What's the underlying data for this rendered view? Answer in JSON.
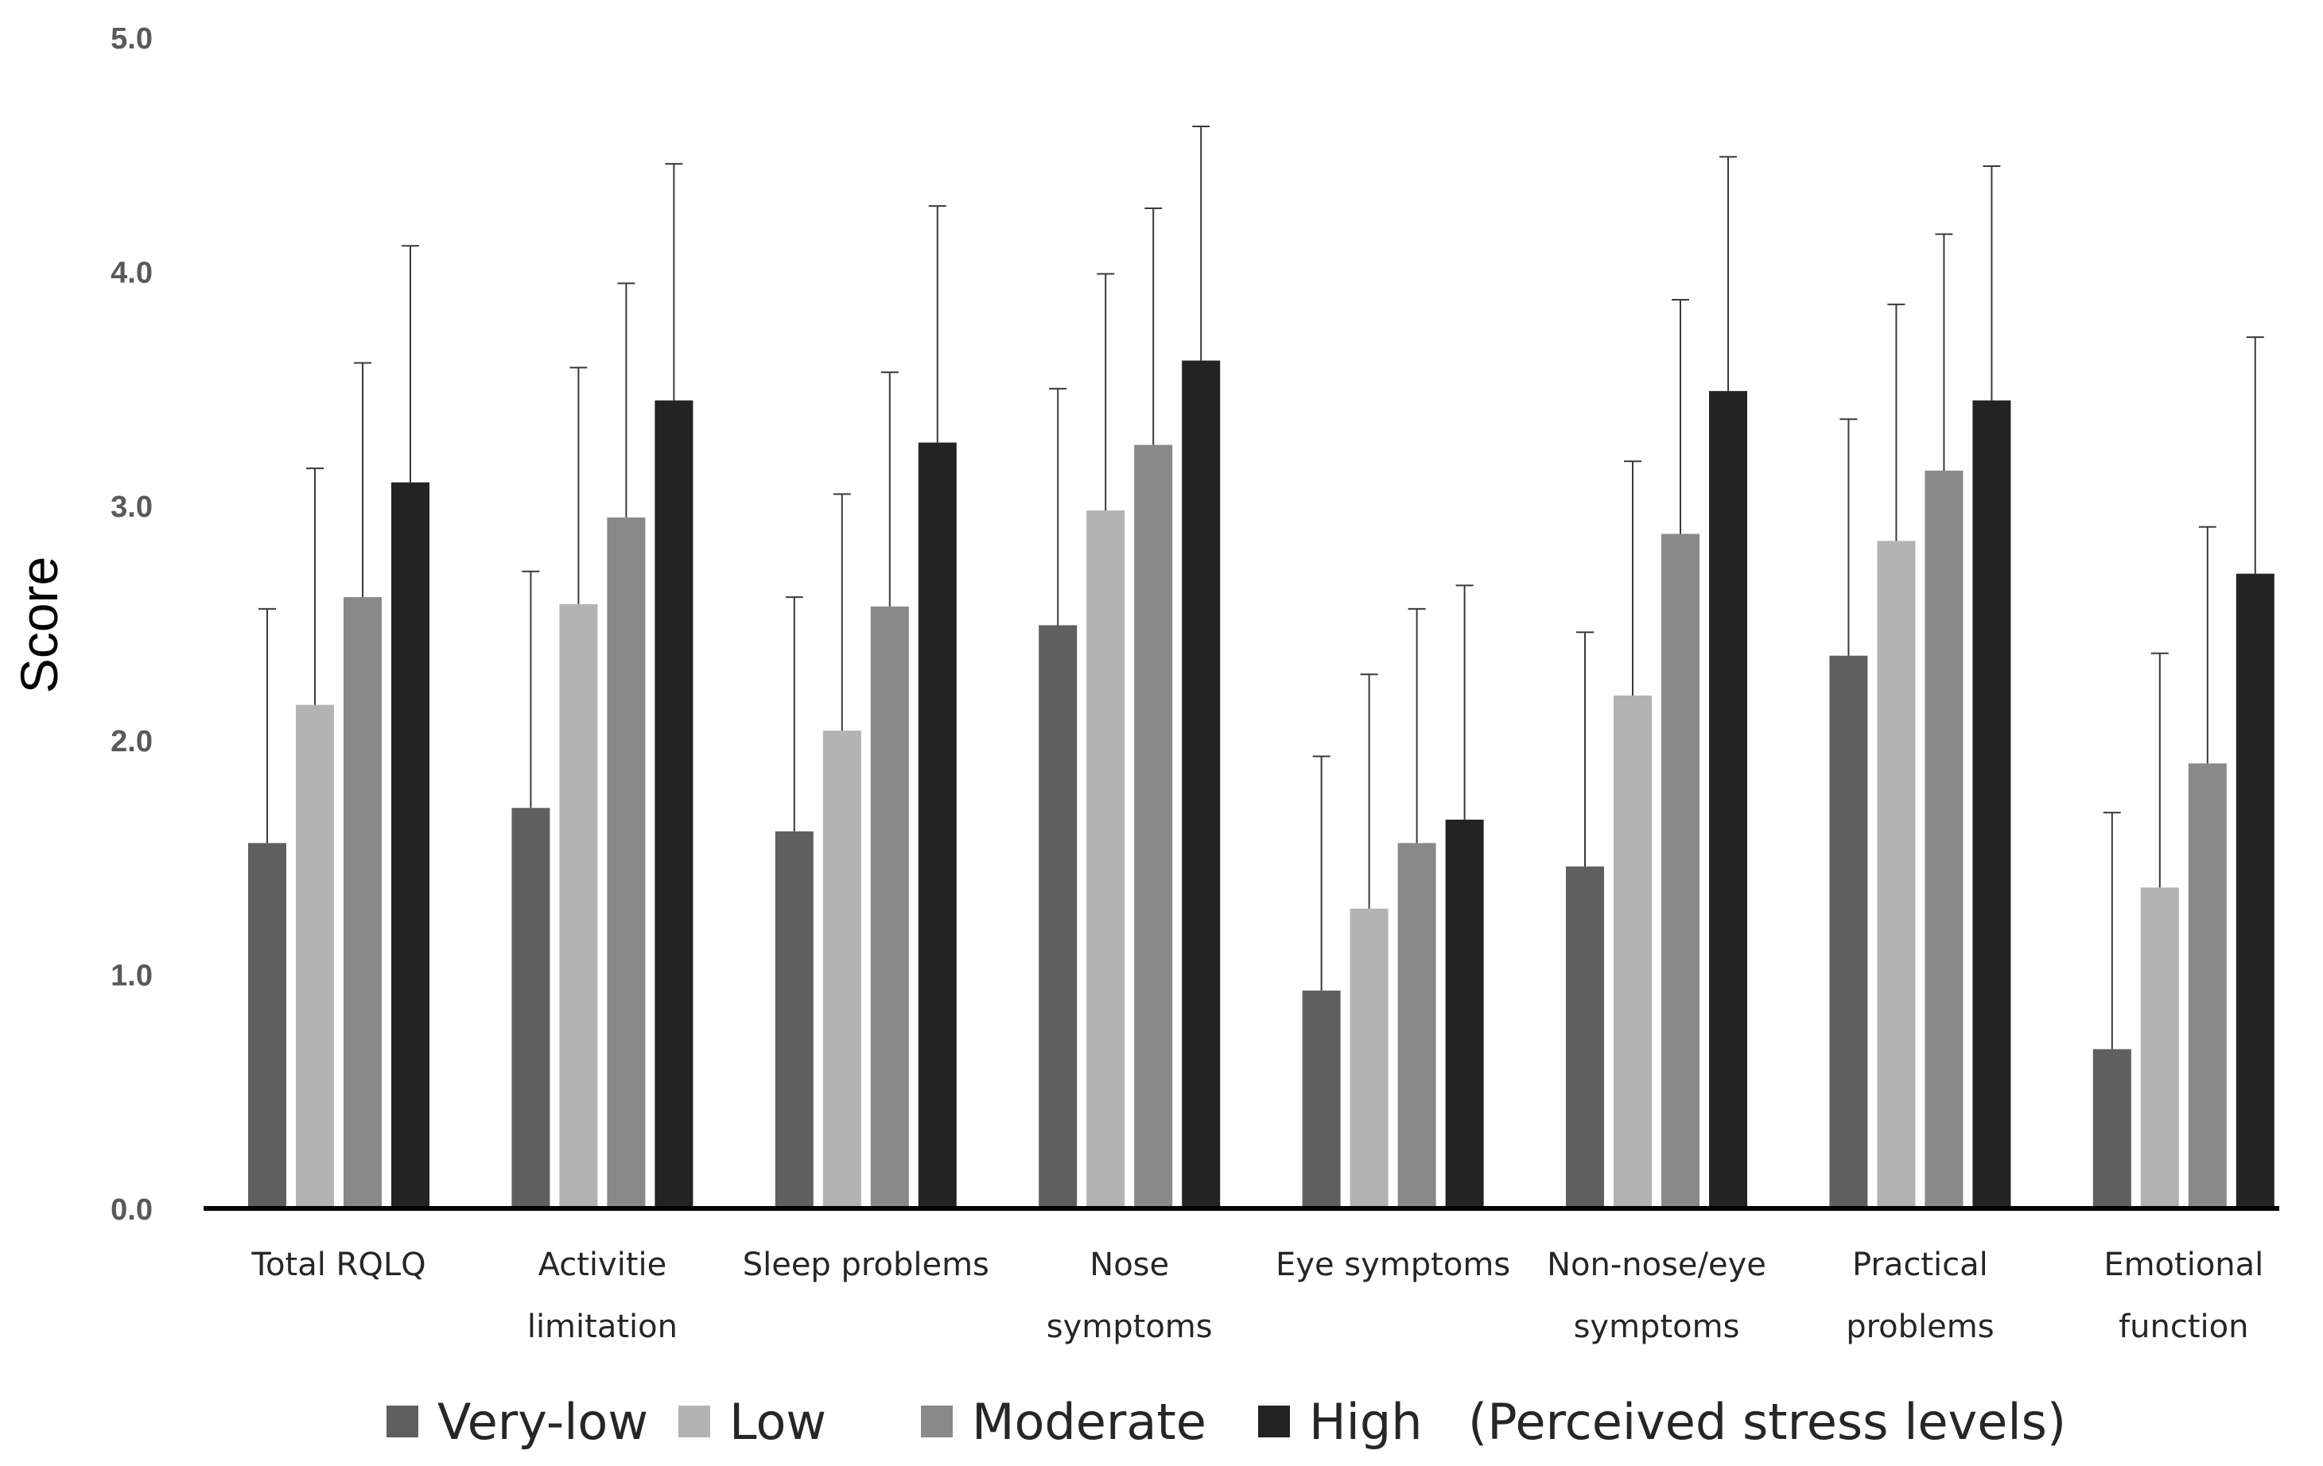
{
  "chart_data": {
    "type": "bar",
    "title": "",
    "xlabel": "",
    "ylabel": "Score",
    "ylim": [
      0,
      5
    ],
    "yticks": [
      "0.0",
      "1.0",
      "2.0",
      "3.0",
      "4.0",
      "5.0"
    ],
    "grid": false,
    "legend_position": "bottom",
    "legend_note": "(Perceived stress levels)",
    "categories": [
      [
        "Total RQLQ"
      ],
      [
        "Activitie",
        "limitation"
      ],
      [
        "Sleep problems"
      ],
      [
        "Nose",
        "symptoms"
      ],
      [
        "Eye symptoms"
      ],
      [
        "Non-nose/eye",
        "symptoms"
      ],
      [
        "Practical",
        "problems"
      ],
      [
        "Emotional",
        "function"
      ]
    ],
    "series": [
      {
        "name": "Very-low",
        "color": "#5f5f5f",
        "values": [
          1.56,
          1.71,
          1.61,
          2.49,
          0.93,
          1.46,
          2.36,
          0.68
        ],
        "error_upper": [
          2.56,
          2.72,
          2.61,
          3.5,
          1.93,
          2.46,
          3.37,
          1.69
        ]
      },
      {
        "name": "Low",
        "color": "#b3b3b3",
        "values": [
          2.15,
          2.58,
          2.04,
          2.98,
          1.28,
          2.19,
          2.85,
          1.37
        ],
        "error_upper": [
          3.16,
          3.59,
          3.05,
          3.99,
          2.28,
          3.19,
          3.86,
          2.37
        ]
      },
      {
        "name": "Moderate",
        "color": "#898989",
        "values": [
          2.61,
          2.95,
          2.57,
          3.26,
          1.56,
          2.88,
          3.15,
          1.9
        ],
        "error_upper": [
          3.61,
          3.95,
          3.57,
          4.27,
          2.56,
          3.88,
          4.16,
          2.91
        ]
      },
      {
        "name": "High",
        "color": "#232323",
        "values": [
          3.1,
          3.45,
          3.27,
          3.62,
          1.66,
          3.49,
          3.45,
          2.71
        ],
        "error_upper": [
          4.11,
          4.46,
          4.28,
          4.62,
          2.66,
          4.49,
          4.45,
          3.72
        ]
      }
    ]
  }
}
